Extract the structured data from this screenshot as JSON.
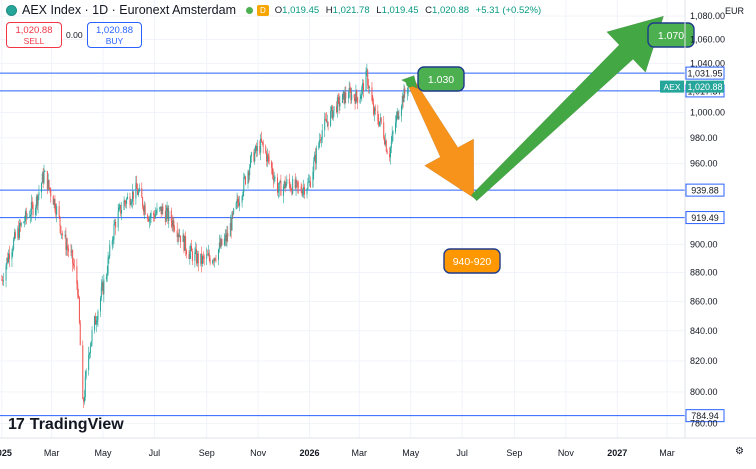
{
  "header": {
    "title": "AEX Index · 1D · Euronext Amsterdam",
    "delay_badge": "D",
    "open": "1,019.45",
    "high": "1,021.78",
    "low": "1,019.45",
    "close": "1,020.88",
    "change": "+5.31 (+0.52%)"
  },
  "trade": {
    "sell_price": "1,020.88",
    "sell_label": "SELL",
    "spread": "0.00",
    "buy_price": "1,020.88",
    "buy_label": "BUY"
  },
  "branding": {
    "name": "TradingView"
  },
  "axis": {
    "currency": "EUR"
  },
  "colors": {
    "candle_up": "#26a69a",
    "candle_down": "#ef5350",
    "hline": "#2962ff",
    "arrow_green": "#43a843",
    "arrow_orange": "#f7931a",
    "callout_green": "#4caf50",
    "callout_orange": "#ff9800"
  },
  "chart_data": {
    "type": "candlestick",
    "y_axis_ticks": [
      "1,080.00",
      "1,060.00",
      "1,040.00",
      "1,000.00",
      "980.00",
      "960.00",
      "900.00",
      "880.00",
      "860.00",
      "840.00",
      "820.00",
      "800.00",
      "780.00"
    ],
    "x_axis_ticks": [
      "2025",
      "Mar",
      "May",
      "Jul",
      "Sep",
      "Nov",
      "2026",
      "Mar",
      "May",
      "Jul",
      "Sep",
      "Nov",
      "2027",
      "Mar"
    ],
    "ylim": [
      776,
      1094
    ],
    "price_label": {
      "name": "AEX",
      "value": "1,020.88"
    },
    "horizontal_lines": [
      {
        "label": "1,031.95",
        "value": 1031.95
      },
      {
        "label": "1,017.37",
        "value": 1017.37
      },
      {
        "label": "939.88",
        "value": 939.88
      },
      {
        "label": "919.49",
        "value": 919.49
      },
      {
        "label": "784.94",
        "value": 784.94
      }
    ],
    "callouts": [
      {
        "text": "1.030",
        "color": "green"
      },
      {
        "text": "940-920",
        "color": "orange"
      },
      {
        "text": "1.070",
        "color": "green"
      }
    ],
    "trajectory": [
      {
        "x": "2025-01-01",
        "y": 875
      },
      {
        "x": "2025-01-10",
        "y": 895
      },
      {
        "x": "2025-01-25",
        "y": 915
      },
      {
        "x": "2025-02-10",
        "y": 930
      },
      {
        "x": "2025-02-20",
        "y": 952
      },
      {
        "x": "2025-03-05",
        "y": 930
      },
      {
        "x": "2025-03-15",
        "y": 905
      },
      {
        "x": "2025-03-25",
        "y": 890
      },
      {
        "x": "2025-04-01",
        "y": 870
      },
      {
        "x": "2025-04-07",
        "y": 790
      },
      {
        "x": "2025-04-15",
        "y": 830
      },
      {
        "x": "2025-04-25",
        "y": 855
      },
      {
        "x": "2025-05-05",
        "y": 880
      },
      {
        "x": "2025-05-15",
        "y": 915
      },
      {
        "x": "2025-05-25",
        "y": 930
      },
      {
        "x": "2025-06-10",
        "y": 940
      },
      {
        "x": "2025-06-25",
        "y": 920
      },
      {
        "x": "2025-07-10",
        "y": 925
      },
      {
        "x": "2025-07-25",
        "y": 915
      },
      {
        "x": "2025-08-10",
        "y": 895
      },
      {
        "x": "2025-08-25",
        "y": 888
      },
      {
        "x": "2025-09-10",
        "y": 892
      },
      {
        "x": "2025-09-25",
        "y": 905
      },
      {
        "x": "2025-10-10",
        "y": 935
      },
      {
        "x": "2025-10-25",
        "y": 965
      },
      {
        "x": "2025-11-05",
        "y": 975
      },
      {
        "x": "2025-11-15",
        "y": 960
      },
      {
        "x": "2025-11-25",
        "y": 940
      },
      {
        "x": "2025-12-05",
        "y": 945
      },
      {
        "x": "2025-12-20",
        "y": 940
      },
      {
        "x": "2026-01-01",
        "y": 945
      },
      {
        "x": "2026-01-15",
        "y": 985
      },
      {
        "x": "2026-02-01",
        "y": 1005
      },
      {
        "x": "2026-02-15",
        "y": 1015
      },
      {
        "x": "2026-03-01",
        "y": 1012
      },
      {
        "x": "2026-03-10",
        "y": 1030
      },
      {
        "x": "2026-03-18",
        "y": 1000
      },
      {
        "x": "2026-03-28",
        "y": 990
      },
      {
        "x": "2026-04-05",
        "y": 965
      },
      {
        "x": "2026-04-12",
        "y": 990
      },
      {
        "x": "2026-04-20",
        "y": 1010
      },
      {
        "x": "2026-04-28",
        "y": 1020.88
      }
    ],
    "arrows": [
      {
        "color": "orange",
        "from": {
          "x": "2026-05-01",
          "y": 1025
        },
        "to": {
          "x": "2026-07-15",
          "y": 934
        }
      },
      {
        "color": "green",
        "from": {
          "x": "2026-07-15",
          "y": 934
        },
        "to": {
          "x": "2027-02-25",
          "y": 1080
        }
      },
      {
        "color": "green",
        "from": {
          "x": "2026-04-28",
          "y": 1021
        },
        "to": {
          "x": "2026-05-05",
          "y": 1030
        }
      }
    ]
  }
}
